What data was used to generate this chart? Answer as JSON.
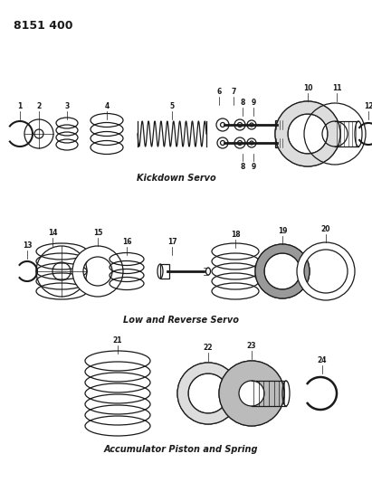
{
  "title": "8151 400",
  "background_color": "#ffffff",
  "line_color": "#1a1a1a",
  "section1_label": "Kickdown Servo",
  "section2_label": "Low and Reverse Servo",
  "section3_label": "Accumulator Piston and Spring",
  "figsize": [
    4.11,
    5.33
  ],
  "dpi": 100
}
